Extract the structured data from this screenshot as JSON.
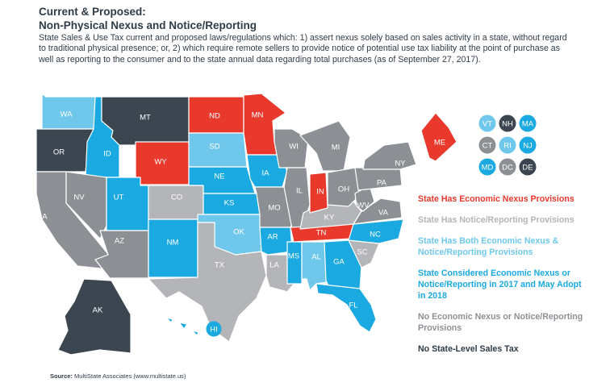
{
  "title": "Current & Proposed:",
  "subtitle": "Non-Physical Nexus and Notice/Reporting",
  "description": "State Sales & Use Tax current and proposed laws/regulations which: 1) assert nexus solely based on sales activity in a state, without regard to traditional physical presence; or, 2) which require remote sellers to provide notice of potential use tax liability at the point of purchase as well as reporting to the consumer and to the state annual data regarding total purchases (as of September 27, 2017).",
  "colors": {
    "economic_nexus": "#e8392c",
    "notice_reporting": "#b3b5b8",
    "both": "#6fc8ec",
    "considered": "#1aa9e1",
    "none": "#8c9095",
    "no_tax": "#3b4651"
  },
  "legend": [
    {
      "category": "economic_nexus",
      "label": "State Has Economic Nexus Provisions"
    },
    {
      "category": "notice_reporting",
      "label": "State Has Notice/Reporting Provisions"
    },
    {
      "category": "both",
      "label": "State Has Both Economic Nexus & Notice/Reporting Provisions"
    },
    {
      "category": "considered",
      "label": "State Considered Economic Nexus or Notice/Reporting in 2017 and May Adopt in 2018"
    },
    {
      "category": "none",
      "label": "No Economic Nexus or Notice/Reporting Provisions"
    },
    {
      "category": "no_tax",
      "label": "No State-Level Sales Tax"
    }
  ],
  "states": [
    {
      "abbr": "WA",
      "category": "both"
    },
    {
      "abbr": "OR",
      "category": "no_tax"
    },
    {
      "abbr": "CA",
      "category": "none"
    },
    {
      "abbr": "ID",
      "category": "considered"
    },
    {
      "abbr": "NV",
      "category": "none"
    },
    {
      "abbr": "MT",
      "category": "no_tax"
    },
    {
      "abbr": "WY",
      "category": "economic_nexus"
    },
    {
      "abbr": "UT",
      "category": "considered"
    },
    {
      "abbr": "AZ",
      "category": "none"
    },
    {
      "abbr": "CO",
      "category": "notice_reporting"
    },
    {
      "abbr": "NM",
      "category": "considered"
    },
    {
      "abbr": "ND",
      "category": "economic_nexus"
    },
    {
      "abbr": "SD",
      "category": "both"
    },
    {
      "abbr": "NE",
      "category": "considered"
    },
    {
      "abbr": "KS",
      "category": "considered"
    },
    {
      "abbr": "OK",
      "category": "both"
    },
    {
      "abbr": "TX",
      "category": "notice_reporting"
    },
    {
      "abbr": "MN",
      "category": "economic_nexus"
    },
    {
      "abbr": "IA",
      "category": "considered"
    },
    {
      "abbr": "MO",
      "category": "none"
    },
    {
      "abbr": "AR",
      "category": "considered"
    },
    {
      "abbr": "LA",
      "category": "notice_reporting"
    },
    {
      "abbr": "WI",
      "category": "none"
    },
    {
      "abbr": "IL",
      "category": "none"
    },
    {
      "abbr": "MS",
      "category": "considered"
    },
    {
      "abbr": "AL",
      "category": "both"
    },
    {
      "abbr": "TN",
      "category": "economic_nexus"
    },
    {
      "abbr": "KY",
      "category": "notice_reporting"
    },
    {
      "abbr": "IN",
      "category": "economic_nexus"
    },
    {
      "abbr": "MI",
      "category": "none"
    },
    {
      "abbr": "OH",
      "category": "none"
    },
    {
      "abbr": "GA",
      "category": "considered"
    },
    {
      "abbr": "FL",
      "category": "considered"
    },
    {
      "abbr": "SC",
      "category": "notice_reporting"
    },
    {
      "abbr": "NC",
      "category": "considered"
    },
    {
      "abbr": "VA",
      "category": "none"
    },
    {
      "abbr": "WV",
      "category": "none"
    },
    {
      "abbr": "PA",
      "category": "none"
    },
    {
      "abbr": "NY",
      "category": "none"
    },
    {
      "abbr": "ME",
      "category": "economic_nexus"
    },
    {
      "abbr": "AK",
      "category": "no_tax"
    },
    {
      "abbr": "HI",
      "category": "considered"
    }
  ],
  "small_states": [
    {
      "abbr": "VT",
      "category": "both"
    },
    {
      "abbr": "NH",
      "category": "no_tax"
    },
    {
      "abbr": "MA",
      "category": "considered"
    },
    {
      "abbr": "CT",
      "category": "none"
    },
    {
      "abbr": "RI",
      "category": "both"
    },
    {
      "abbr": "NJ",
      "category": "considered"
    },
    {
      "abbr": "MD",
      "category": "considered"
    },
    {
      "abbr": "DC",
      "category": "none"
    },
    {
      "abbr": "DE",
      "category": "no_tax"
    }
  ],
  "source_label": "Source:",
  "source_text": "MultiState Associates (www.multistate.us)"
}
